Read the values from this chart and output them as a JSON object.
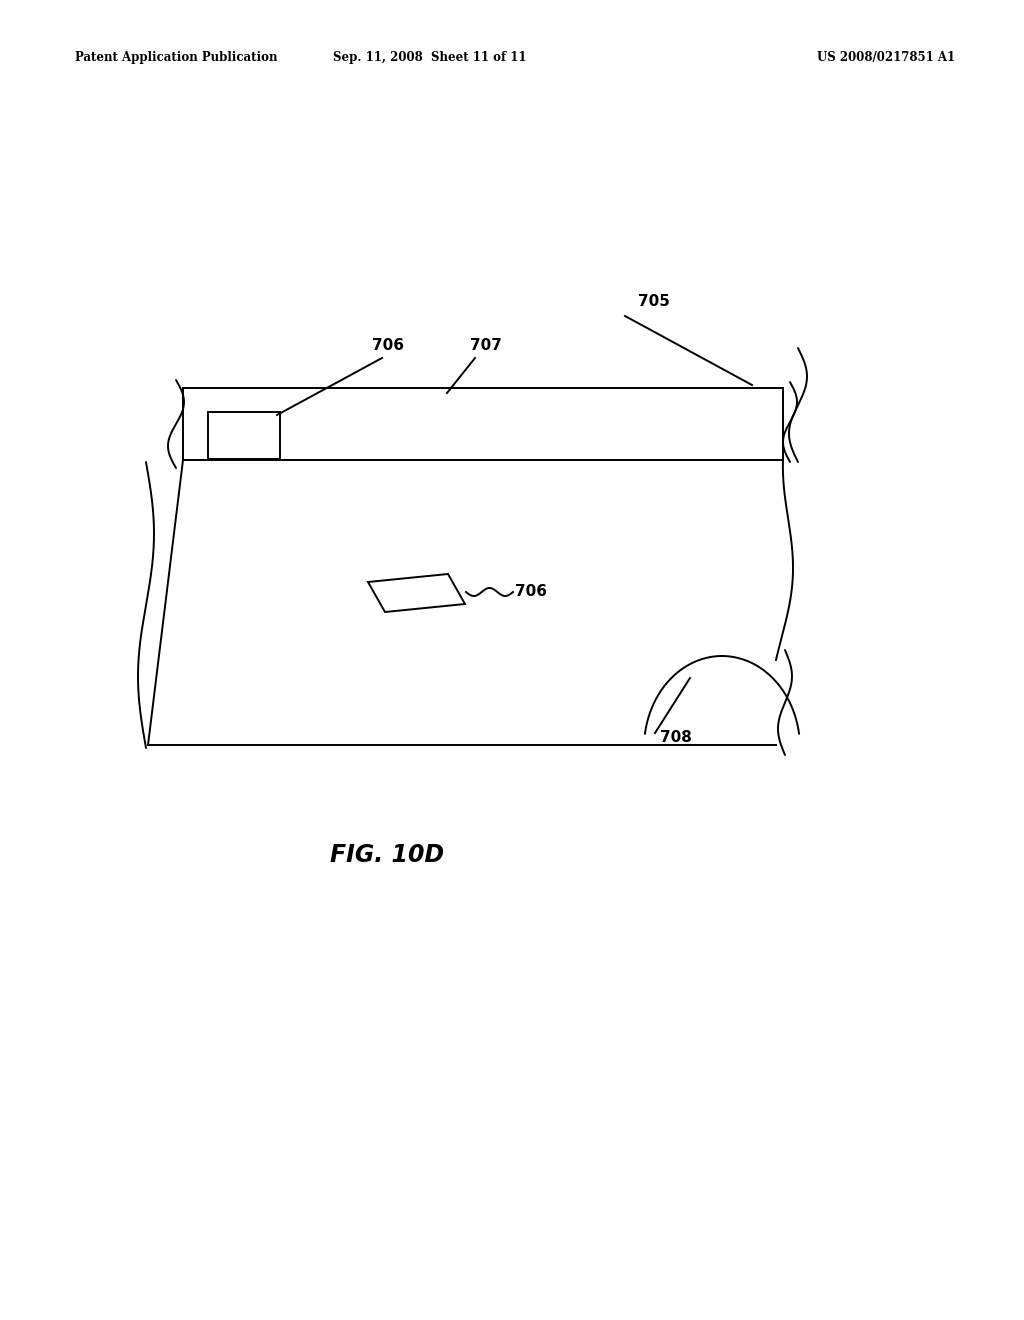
{
  "background_color": "#ffffff",
  "header_left": "Patent Application Publication",
  "header_mid": "Sep. 11, 2008  Sheet 11 of 11",
  "header_right": "US 2008/0217851 A1",
  "caption": "FIG. 10D",
  "label_705": "705",
  "label_706": "706",
  "label_707": "707",
  "label_708": "708",
  "label_706b": "706",
  "lw": 1.4
}
